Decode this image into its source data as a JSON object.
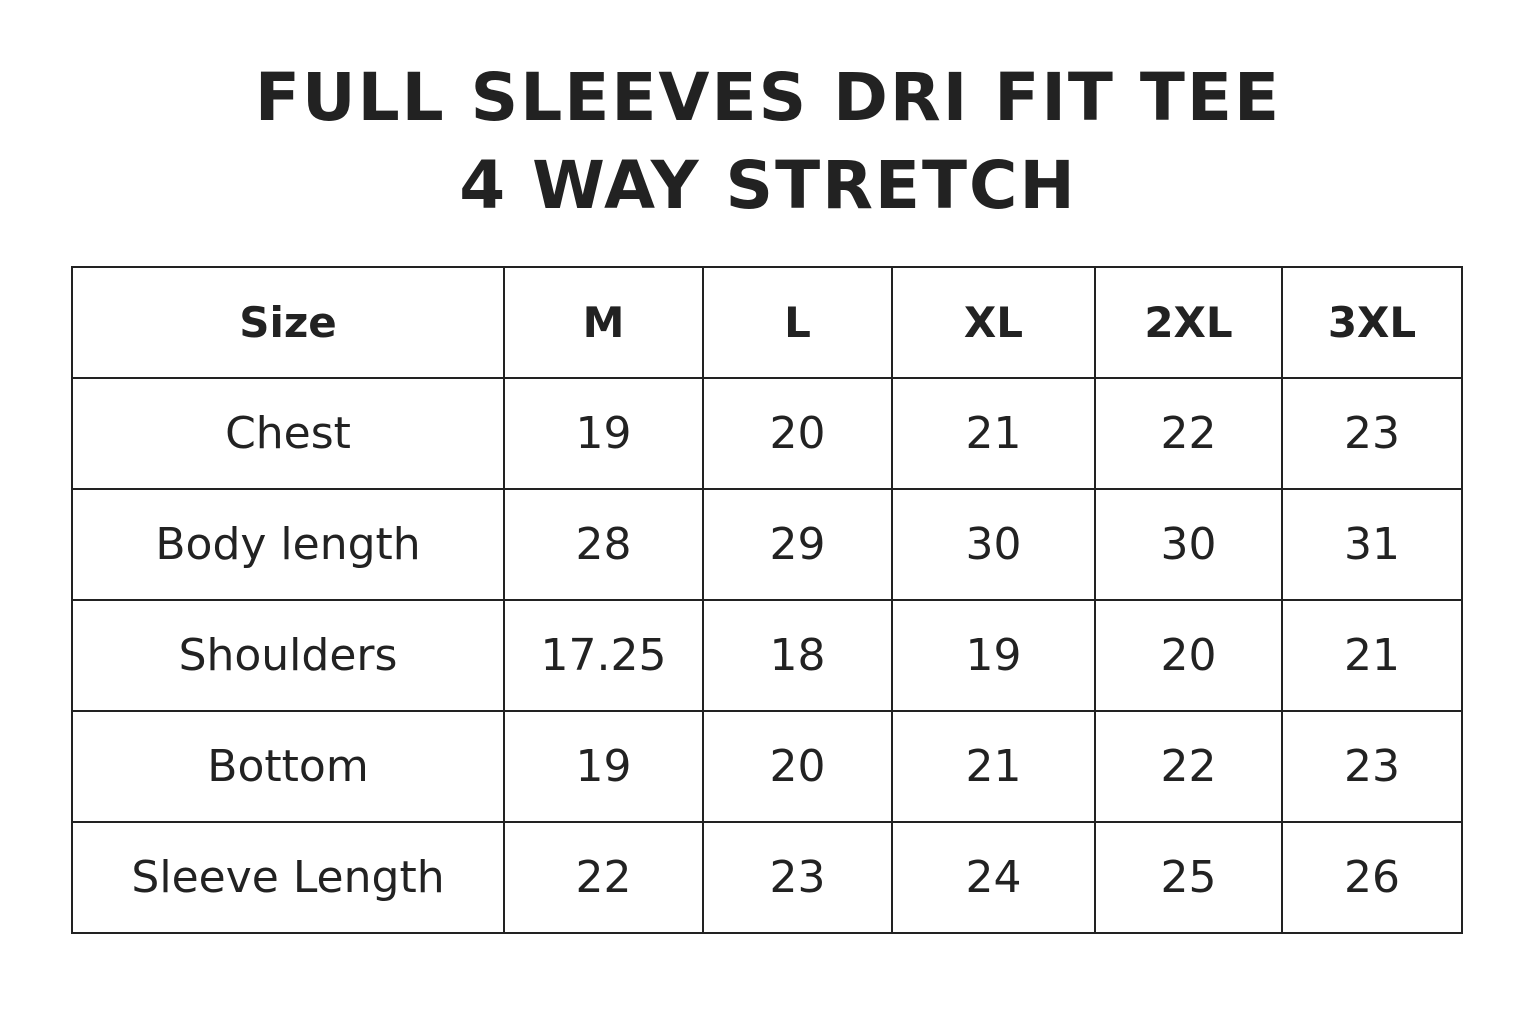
{
  "title": {
    "line1": "FULL SLEEVES DRI FIT TEE",
    "line2": "4 WAY STRETCH"
  },
  "table": {
    "headers": [
      "Size",
      "M",
      "L",
      "XL",
      "2XL",
      "3XL"
    ],
    "rows": [
      [
        "Chest",
        "19",
        "20",
        "21",
        "22",
        "23"
      ],
      [
        "Body length",
        "28",
        "29",
        "30",
        "30",
        "31"
      ],
      [
        "Shoulders",
        "17.25",
        "18",
        "19",
        "20",
        "21"
      ],
      [
        "Bottom",
        "19",
        "20",
        "21",
        "22",
        "23"
      ],
      [
        "Sleeve Length",
        "22",
        "23",
        "24",
        "25",
        "26"
      ]
    ]
  }
}
